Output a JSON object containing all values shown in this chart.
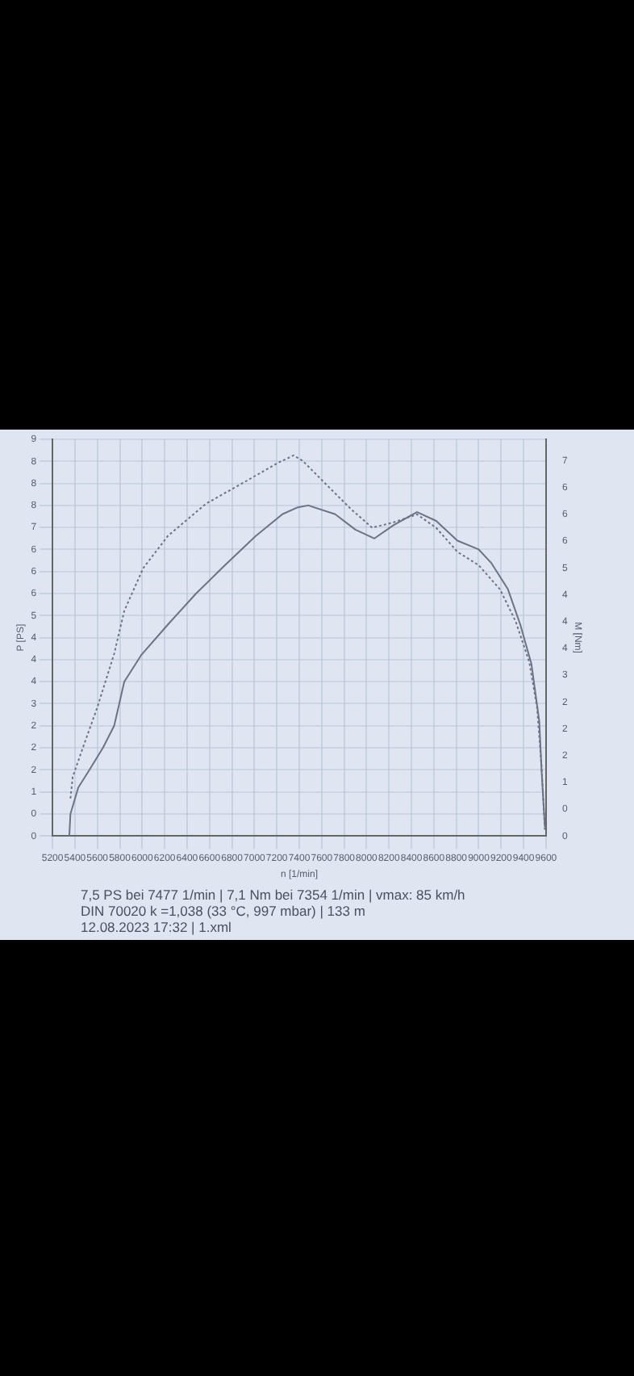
{
  "chart_data": {
    "type": "line",
    "xlabel": "n [1/min]",
    "ylabel": "P [PS]",
    "y2label": "M [Nm]",
    "xlim": [
      5200,
      9600
    ],
    "xticks": [
      5200,
      5400,
      5600,
      5800,
      6000,
      6200,
      6400,
      6600,
      6800,
      7000,
      7200,
      7400,
      7600,
      7800,
      8000,
      8200,
      8400,
      8600,
      8800,
      9000,
      9200,
      9400,
      9600
    ],
    "ylim": [
      0,
      9
    ],
    "yticks": [
      0,
      {
        "value": 0.5,
        "label": "0"
      },
      1,
      {
        "value": 1.5,
        "label": "2"
      },
      2,
      {
        "value": 2.5,
        "label": "2"
      },
      3,
      {
        "value": 3.5,
        "label": "4"
      },
      4,
      {
        "value": 4.5,
        "label": "4"
      },
      5,
      {
        "value": 5.5,
        "label": "6"
      },
      6,
      {
        "value": 6.5,
        "label": "6"
      },
      7,
      {
        "value": 7.5,
        "label": "8"
      },
      8,
      {
        "value": 8.5,
        "label": "8"
      },
      9
    ],
    "y2lim": [
      0,
      7.4
    ],
    "y2ticks": [
      0,
      {
        "value": 0.5,
        "label": "0"
      },
      1,
      {
        "value": 1.5,
        "label": "2"
      },
      2,
      {
        "value": 2.5,
        "label": "2"
      },
      3,
      {
        "value": 3.5,
        "label": "4"
      },
      4,
      {
        "value": 4.5,
        "label": "4"
      },
      5,
      {
        "value": 5.5,
        "label": "6"
      },
      6,
      {
        "value": 6.5,
        "label": "6"
      },
      7
    ],
    "grid": true,
    "legend": false,
    "marker": "none",
    "series": [
      {
        "color": "#6b7385",
        "line_style": "solid",
        "x": [
          5350,
          5360,
          5430,
          5530,
          5650,
          5750,
          5840,
          5990,
          6230,
          6480,
          6720,
          7010,
          7250,
          7380,
          7480,
          7720,
          7900,
          8070,
          8240,
          8450,
          8620,
          8810,
          9000,
          9110,
          9260,
          9370,
          9470,
          9540,
          9560,
          9590
        ],
        "values": [
          0,
          0.5,
          1.1,
          1.5,
          2,
          2.5,
          3.5,
          4.1,
          4.8,
          5.5,
          6.1,
          6.8,
          7.3,
          7.45,
          7.5,
          7.3,
          6.95,
          6.75,
          7.05,
          7.35,
          7.15,
          6.7,
          6.5,
          6.2,
          5.6,
          4.8,
          3.9,
          2.6,
          1.5,
          0.2
        ]
      },
      {
        "color": "#6b7385",
        "line_style": "dotted",
        "axis": "y2",
        "x": [
          5360,
          5380,
          5480,
          5600,
          5750,
          5840,
          6010,
          6230,
          6570,
          6910,
          7200,
          7350,
          7430,
          7620,
          7860,
          8050,
          8240,
          8450,
          8620,
          8810,
          9000,
          9190,
          9330,
          9450,
          9520,
          9560,
          9590
        ],
        "values": [
          0.7,
          1.1,
          1.7,
          2.4,
          3.4,
          4.2,
          5,
          5.6,
          6.2,
          6.6,
          6.95,
          7.1,
          7.0,
          6.6,
          6.1,
          5.75,
          5.85,
          6,
          5.75,
          5.3,
          5.05,
          4.6,
          4,
          3.25,
          2.4,
          1.3,
          0.1
        ]
      }
    ],
    "annotations": [
      "7,5 PS bei 7477 1/min | 7,1 Nm bei 7354 1/min | vmax: 85 km/h",
      "DIN 70020 k =1,038 (33 °C, 997 mbar) | 133 m",
      "12.08.2023 17:32 | 1.xml"
    ]
  }
}
